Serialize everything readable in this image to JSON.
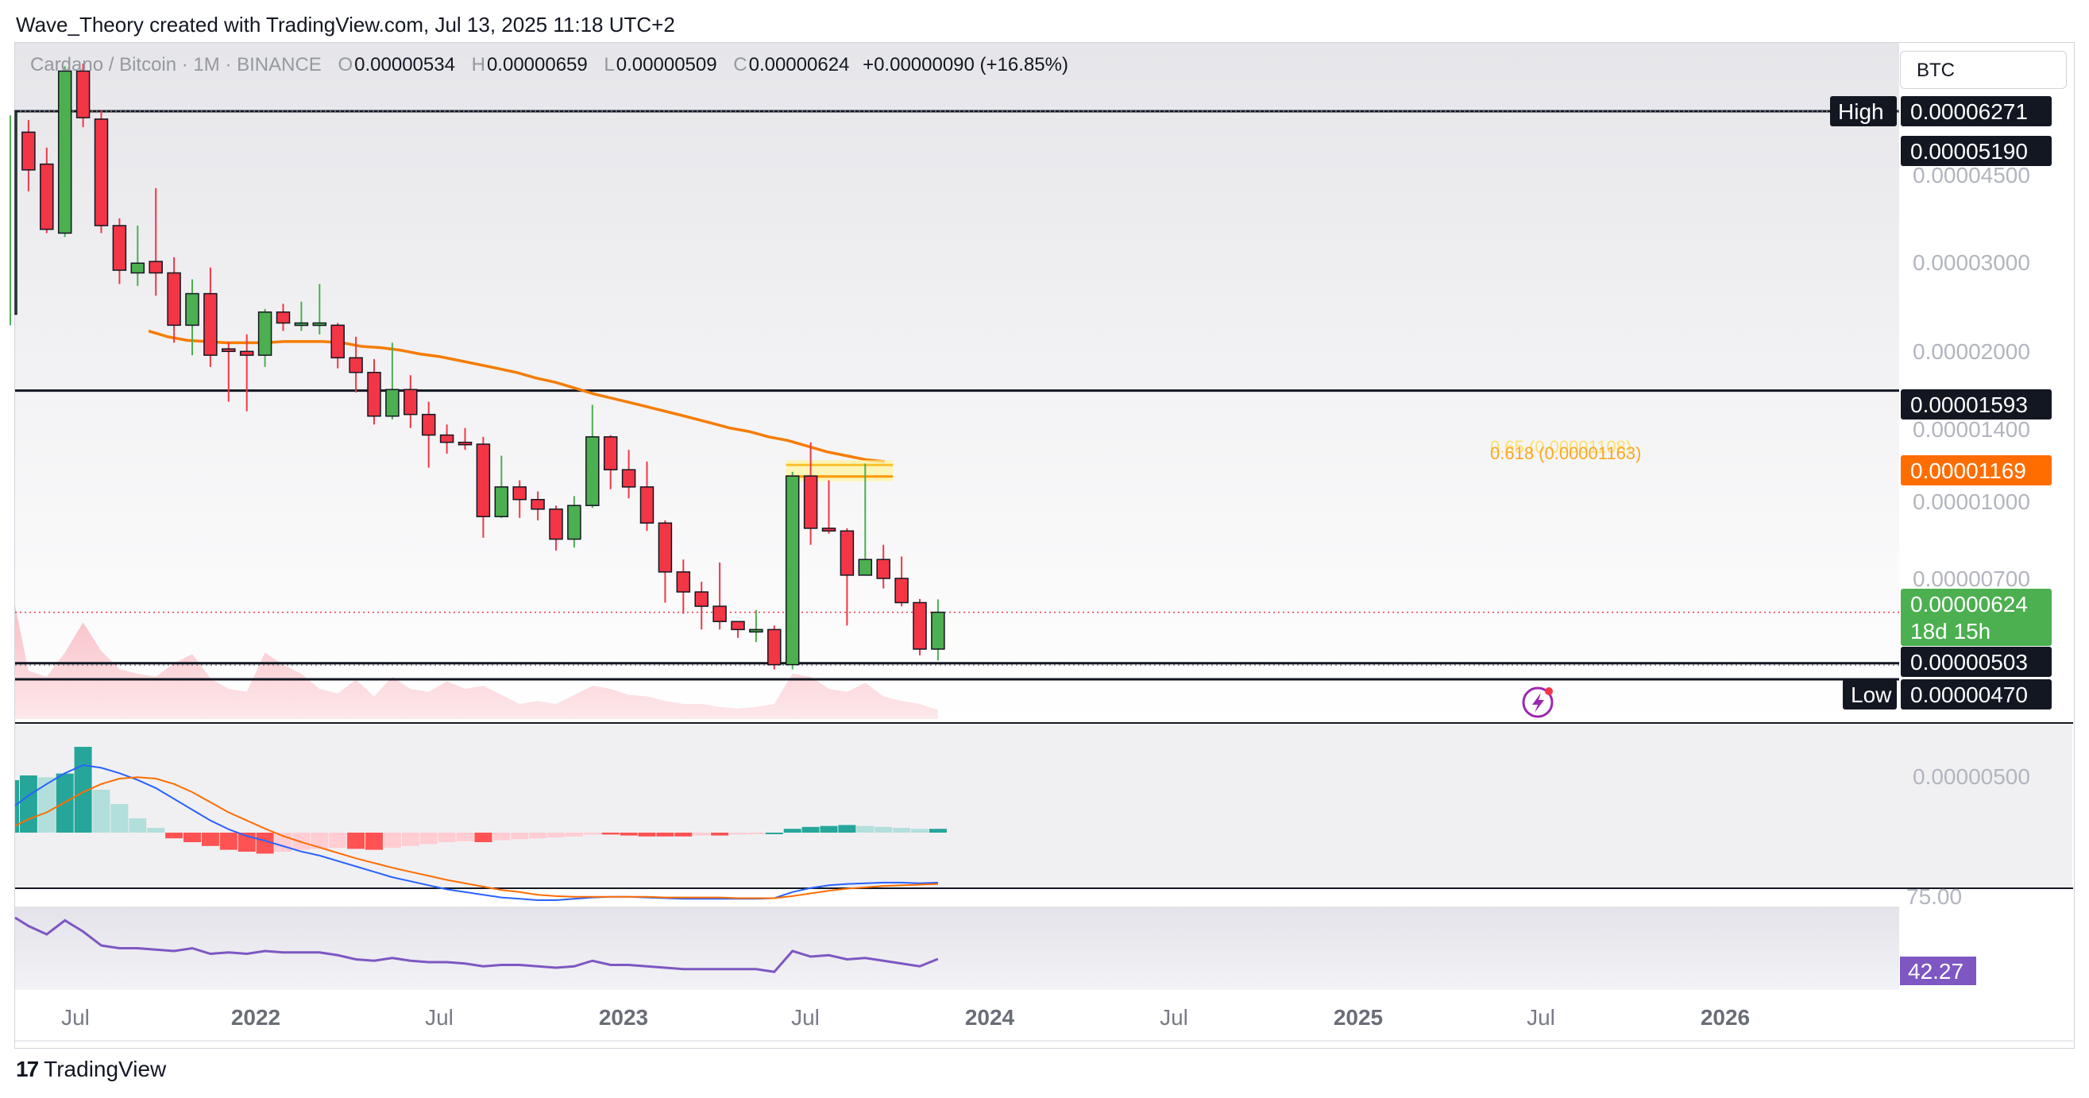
{
  "header": {
    "author_line": "Wave_Theory created with TradingView.com, Jul 13, 2025 11:18 UTC+2"
  },
  "symbol": {
    "name": "Cardano / Bitcoin · 1M · BINANCE",
    "open_label": "O",
    "open": "0.00000534",
    "high_label": "H",
    "high": "0.00000659",
    "low_label": "L",
    "low": "0.00000509",
    "close_label": "C",
    "close": "0.00000624",
    "change": "+0.00000090 (+16.85%)"
  },
  "currency": "BTC",
  "logo": {
    "mark": "17",
    "text": "TradingView"
  },
  "colors": {
    "up": "#4caf50",
    "down": "#f23645",
    "ema": "#f57c00",
    "rsi": "#7e57c2",
    "macd": "#2962ff",
    "signal": "#ff6d00",
    "fib": "#fbc02d",
    "vol_up": "#b7dcb3",
    "vol_down": "#f8b5bd",
    "hist_up_strong": "#26a69a",
    "hist_up_weak": "#b2dfdb",
    "hist_down_strong": "#ff5252",
    "hist_down_weak": "#ffcdd2"
  },
  "price_axis": {
    "ticks": [
      "0.00004500",
      "0.00003000",
      "0.00002000",
      "0.00001400",
      "0.00001000",
      "0.00000700",
      "0.00000500"
    ]
  },
  "price_tags": [
    {
      "label": "High",
      "value": "0.00006271"
    },
    {
      "label": "",
      "value": "0.00005190"
    },
    {
      "label": "",
      "value": "0.00001593"
    },
    {
      "label": "",
      "value": "0.00001169"
    },
    {
      "label": "",
      "value": "0.00000624",
      "countdown": "18d 15h"
    },
    {
      "label": "",
      "value": "0.00000503"
    },
    {
      "label": "Low",
      "value": "0.00000470"
    }
  ],
  "fib_labels": [
    "0.65 (0.00001108)",
    "0.618 (0.00001163)"
  ],
  "time_axis": [
    {
      "label": "Jul",
      "year": false
    },
    {
      "label": "2022",
      "year": true
    },
    {
      "label": "Jul",
      "year": false
    },
    {
      "label": "2023",
      "year": true
    },
    {
      "label": "Jul",
      "year": false
    },
    {
      "label": "2024",
      "year": true
    },
    {
      "label": "Jul",
      "year": false
    },
    {
      "label": "2025",
      "year": true
    },
    {
      "label": "Jul",
      "year": false
    },
    {
      "label": "2026",
      "year": true
    }
  ],
  "rsi": {
    "level_label": "75.00",
    "value": "42.27"
  },
  "chart_data": {
    "type": "candlestick",
    "title": "Cardano / Bitcoin · 1M · BINANCE",
    "scale": "log",
    "interval": "1M",
    "horizontal_levels": [
      5.19e-05,
      1.593e-05,
      5.03e-06,
      4.7e-06
    ],
    "months": [
      "2021-04",
      "2021-05",
      "2021-06",
      "2021-07",
      "2021-08",
      "2021-09",
      "2021-10",
      "2021-11",
      "2021-12",
      "2022-01",
      "2022-02",
      "2022-03",
      "2022-04",
      "2022-05",
      "2022-06",
      "2022-07",
      "2022-08",
      "2022-09",
      "2022-10",
      "2022-11",
      "2022-12",
      "2023-01",
      "2023-02",
      "2023-03",
      "2023-04",
      "2023-05",
      "2023-06",
      "2023-07",
      "2023-08",
      "2023-09",
      "2023-10",
      "2023-11",
      "2023-12",
      "2024-01",
      "2024-02",
      "2024-03",
      "2024-04",
      "2024-05",
      "2024-06",
      "2024-07",
      "2024-08",
      "2024-09",
      "2024-10",
      "2024-11",
      "2024-12",
      "2025-01",
      "2025-02",
      "2025-03",
      "2025-04",
      "2025-05",
      "2025-06",
      "2025-07"
    ],
    "candles": [
      [
        2.2e-05,
        5.2e-05,
        2.1e-05,
        5.1e-05
      ],
      [
        4.75e-05,
        4.05e-05,
        5e-05,
        3.7e-05
      ],
      [
        4.15e-05,
        3.15e-05,
        4.45e-05,
        3.1e-05
      ],
      [
        3.1e-05,
        6.15e-05,
        6.28e-05,
        3.05e-05
      ],
      [
        6.15e-05,
        5.05e-05,
        6.35e-05,
        4.85e-05
      ],
      [
        5.02e-05,
        3.2e-05,
        5.2e-05,
        3.1e-05
      ],
      [
        3.2e-05,
        2.65e-05,
        3.3e-05,
        2.5e-05
      ],
      [
        2.62e-05,
        2.73e-05,
        3.2e-05,
        2.48e-05
      ],
      [
        2.75e-05,
        2.62e-05,
        3.75e-05,
        2.38e-05
      ],
      [
        2.62e-05,
        2.1e-05,
        2.8e-05,
        1.95e-05
      ],
      [
        2.1e-05,
        2.4e-05,
        2.55e-05,
        1.85e-05
      ],
      [
        2.4e-05,
        1.85e-05,
        2.68e-05,
        1.76e-05
      ],
      [
        1.9e-05,
        1.88e-05,
        1.955e-05,
        1.52e-05
      ],
      [
        1.88e-05,
        1.85e-05,
        2.02e-05,
        1.46e-05
      ],
      [
        1.85e-05,
        2.22e-05,
        2.25e-05,
        1.76e-05
      ],
      [
        2.22e-05,
        2.12e-05,
        2.3e-05,
        2.05e-05
      ],
      [
        2.12e-05,
        2.12e-05,
        2.32e-05,
        2.05e-05
      ],
      [
        2.12e-05,
        2.12e-05,
        2.5e-05,
        2.02e-05
      ],
      [
        2.1e-05,
        1.83e-05,
        2.12e-05,
        1.75e-05
      ],
      [
        1.83e-05,
        1.72e-05,
        2e-05,
        1.58e-05
      ],
      [
        1.72e-05,
        1.43e-05,
        1.82e-05,
        1.38e-05
      ],
      [
        1.43e-05,
        1.6e-05,
        1.95e-05,
        1.41e-05
      ],
      [
        1.6e-05,
        1.44e-05,
        1.7e-05,
        1.36e-05
      ],
      [
        1.44e-05,
        1.32e-05,
        1.52e-05,
        1.15e-05
      ],
      [
        1.32e-05,
        1.28e-05,
        1.38e-05,
        1.22e-05
      ],
      [
        1.28e-05,
        1.27e-05,
        1.36e-05,
        1.24e-05
      ],
      [
        1.27e-05,
        9.35e-06,
        1.31e-05,
        8.55e-06
      ],
      [
        9.35e-06,
        1.06e-05,
        1.21e-05,
        9.3e-06
      ],
      [
        1.06e-05,
        1.005e-05,
        1.09e-05,
        9.3e-06
      ],
      [
        1.005e-05,
        9.65e-06,
        1.04e-05,
        9.2e-06
      ],
      [
        9.65e-06,
        8.5e-06,
        9.8e-06,
        8.1e-06
      ],
      [
        8.5e-06,
        9.8e-06,
        1.02e-05,
        8.2e-06
      ],
      [
        9.8e-06,
        1.31e-05,
        1.5e-05,
        9.7e-06
      ],
      [
        1.31e-05,
        1.14e-05,
        1.32e-05,
        1.05e-05
      ],
      [
        1.14e-05,
        1.06e-05,
        1.24e-05,
        1.01e-05
      ],
      [
        1.06e-05,
        9.1e-06,
        1.18e-05,
        8.8e-06
      ],
      [
        9.1e-06,
        7.4e-06,
        9.2e-06,
        6.5e-06
      ],
      [
        7.4e-06,
        6.8e-06,
        7.8e-06,
        6.2e-06
      ],
      [
        6.8e-06,
        6.4e-06,
        7.1e-06,
        5.8e-06
      ],
      [
        6.4e-06,
        6e-06,
        7.7e-06,
        5.8e-06
      ],
      [
        6e-06,
        5.8e-06,
        6e-06,
        5.6e-06
      ],
      [
        5.8e-06,
        5.8e-06,
        6.3e-06,
        5.5e-06
      ],
      [
        5.8e-06,
        5e-06,
        5.9e-06,
        4.9e-06
      ],
      [
        5e-06,
        1.11e-05,
        1.13e-05,
        4.9e-06
      ],
      [
        1.11e-05,
        8.9e-06,
        1.28e-05,
        8.3e-06
      ],
      [
        8.9e-06,
        8.8e-06,
        1.09e-05,
        8.7e-06
      ],
      [
        8.8e-06,
        7.3e-06,
        8.9e-06,
        5.9e-06
      ],
      [
        7.3e-06,
        7.8e-06,
        1.17e-05,
        7.3e-06
      ],
      [
        7.8e-06,
        7.2e-06,
        8.3e-06,
        6.9e-06
      ],
      [
        7.2e-06,
        6.5e-06,
        7.9e-06,
        6.4e-06
      ],
      [
        6.5e-06,
        5.34e-06,
        6.6e-06,
        5.2e-06
      ],
      [
        5.34e-06,
        6.24e-06,
        6.59e-06,
        5.09e-06
      ]
    ],
    "candle_fields": [
      "open",
      "close",
      "high",
      "low"
    ],
    "ema": [
      2.05e-05,
      2e-05,
      1.97e-05,
      1.96e-05,
      1.95e-05,
      1.95e-05,
      1.95e-05,
      1.96e-05,
      1.96e-05,
      1.96e-05,
      1.95e-05,
      1.92e-05,
      1.91e-05,
      1.89e-05,
      1.86e-05,
      1.84e-05,
      1.81e-05,
      1.78e-05,
      1.75e-05,
      1.72e-05,
      1.68e-05,
      1.65e-05,
      1.61e-05,
      1.57e-05,
      1.54e-05,
      1.51e-05,
      1.48e-05,
      1.45e-05,
      1.42e-05,
      1.39e-05,
      1.36e-05,
      1.34e-05,
      1.31e-05,
      1.29e-05,
      1.26e-05,
      1.23e-05,
      1.21e-05,
      1.19e-05,
      1.18e-05
    ],
    "ema_start_month": "2021-10",
    "fib_levels": [
      {
        "ratio": 0.65,
        "value": 1.108e-05
      },
      {
        "ratio": 0.618,
        "value": 1.163e-05
      }
    ],
    "volume_relative": [
      0.75,
      0.32,
      0.28,
      0.44,
      0.64,
      0.45,
      0.33,
      0.3,
      0.28,
      0.37,
      0.43,
      0.27,
      0.2,
      0.18,
      0.44,
      0.36,
      0.3,
      0.2,
      0.17,
      0.26,
      0.15,
      0.28,
      0.2,
      0.18,
      0.25,
      0.2,
      0.22,
      0.16,
      0.1,
      0.12,
      0.1,
      0.16,
      0.22,
      0.2,
      0.16,
      0.15,
      0.12,
      0.1,
      0.1,
      0.08,
      0.07,
      0.08,
      0.1,
      0.3,
      0.28,
      0.2,
      0.18,
      0.24,
      0.15,
      0.12,
      0.1,
      0.06
    ],
    "macd_hist": [
      0.55,
      0.6,
      0.58,
      0.62,
      0.9,
      0.45,
      0.3,
      0.15,
      0.05,
      -0.06,
      -0.1,
      -0.14,
      -0.18,
      -0.2,
      -0.22,
      -0.2,
      -0.18,
      -0.17,
      -0.16,
      -0.17,
      -0.18,
      -0.16,
      -0.14,
      -0.12,
      -0.1,
      -0.09,
      -0.1,
      -0.08,
      -0.07,
      -0.06,
      -0.05,
      -0.04,
      -0.02,
      -0.02,
      -0.03,
      -0.04,
      -0.04,
      -0.04,
      -0.03,
      -0.03,
      -0.02,
      -0.01,
      0.0,
      0.04,
      0.06,
      0.07,
      0.08,
      0.07,
      0.06,
      0.05,
      0.04,
      0.04
    ],
    "macd_line": [
      0.4,
      0.55,
      0.72,
      0.88,
      1.0,
      0.96,
      0.88,
      0.78,
      0.66,
      0.5,
      0.34,
      0.18,
      0.05,
      -0.05,
      -0.12,
      -0.2,
      -0.28,
      -0.34,
      -0.42,
      -0.5,
      -0.58,
      -0.66,
      -0.72,
      -0.78,
      -0.84,
      -0.88,
      -0.92,
      -0.96,
      -0.98,
      -1.0,
      -1.0,
      -0.98,
      -0.96,
      -0.95,
      -0.95,
      -0.96,
      -0.97,
      -0.98,
      -0.98,
      -0.98,
      -0.98,
      -0.98,
      -0.97,
      -0.88,
      -0.82,
      -0.78,
      -0.76,
      -0.75,
      -0.74,
      -0.74,
      -0.75,
      -0.74
    ],
    "signal_line": [
      0.1,
      0.2,
      0.3,
      0.45,
      0.6,
      0.72,
      0.8,
      0.82,
      0.8,
      0.72,
      0.6,
      0.45,
      0.3,
      0.18,
      0.06,
      -0.05,
      -0.14,
      -0.22,
      -0.3,
      -0.38,
      -0.45,
      -0.52,
      -0.58,
      -0.64,
      -0.7,
      -0.75,
      -0.8,
      -0.85,
      -0.88,
      -0.92,
      -0.94,
      -0.95,
      -0.95,
      -0.95,
      -0.95,
      -0.95,
      -0.96,
      -0.96,
      -0.96,
      -0.96,
      -0.97,
      -0.97,
      -0.97,
      -0.94,
      -0.9,
      -0.86,
      -0.83,
      -0.81,
      -0.79,
      -0.78,
      -0.77,
      -0.76
    ],
    "rsi_values": [
      72,
      66,
      60,
      70,
      62,
      52,
      50,
      50,
      49,
      48,
      50,
      46,
      47,
      46,
      48,
      47,
      47,
      47,
      45,
      42,
      41,
      43,
      41,
      40,
      40,
      39,
      37,
      38,
      38,
      37,
      36,
      37,
      41,
      38,
      38,
      37,
      36,
      35,
      35,
      35,
      35,
      35,
      33,
      48,
      44,
      45,
      42,
      43,
      41,
      39,
      37,
      42.27
    ],
    "rsi_range": [
      20,
      80
    ]
  }
}
